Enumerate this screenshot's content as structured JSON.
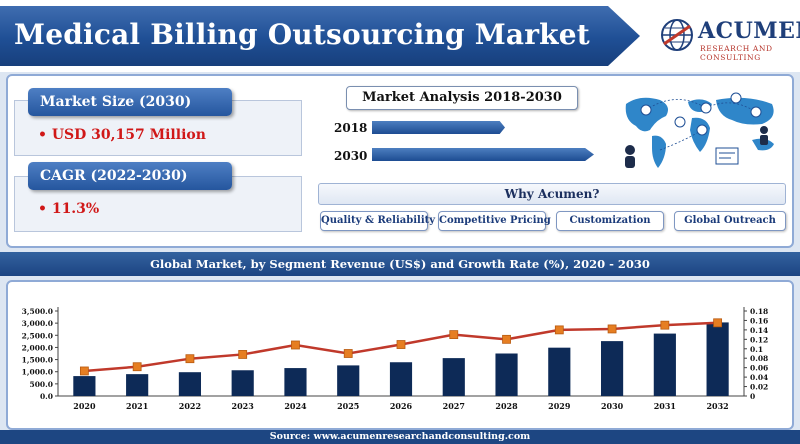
{
  "header": {
    "title": "Medical Billing Outsourcing Market",
    "logo_word": "ACUMEN",
    "logo_sub": "RESEARCH AND CONSULTING"
  },
  "kpis": [
    {
      "label": "Market Size (2030)",
      "value": "• USD 30,157 Million"
    },
    {
      "label": "CAGR (2022-2030)",
      "value": "• 11.3%"
    }
  ],
  "analysis": {
    "title": "Market Analysis 2018-2030",
    "years": [
      {
        "label": "2018",
        "relative": 0.6
      },
      {
        "label": "2030",
        "relative": 1.0
      }
    ]
  },
  "why": {
    "title": "Why Acumen?",
    "items": [
      "Quality & Reliability",
      "Competitive Pricing",
      "Customization",
      "Global Outreach"
    ]
  },
  "chart_title": "Global Market, by Segment Revenue (US$) and Growth Rate (%), 2020 - 2030",
  "source": "Source: www.acumenresearchandconsulting.com",
  "colors": {
    "brand_blue": "#1f4f95",
    "bar_navy": "#0d2a57",
    "line_red": "#c0392b",
    "marker_orange": "#e67e22",
    "value_red": "#d01818"
  },
  "chart_data": {
    "type": "bar+line",
    "categories": [
      "2020",
      "2021",
      "2022",
      "2023",
      "2024",
      "2025",
      "2026",
      "2027",
      "2028",
      "2029",
      "2030",
      "2031",
      "2032"
    ],
    "series": [
      {
        "type": "bar",
        "axis": "left",
        "values": [
          820,
          900,
          980,
          1060,
          1150,
          1260,
          1390,
          1560,
          1750,
          1990,
          2260,
          2570,
          3030
        ]
      },
      {
        "type": "line",
        "axis": "right",
        "values": [
          0.053,
          0.062,
          0.079,
          0.088,
          0.108,
          0.09,
          0.109,
          0.13,
          0.12,
          0.14,
          0.142,
          0.15,
          0.155
        ]
      }
    ],
    "y_left": {
      "min": 0,
      "max": 3500,
      "ticks": [
        "0.0",
        "500.0",
        "1,000.0",
        "1,500.0",
        "2,000.0",
        "2,500.0",
        "3,000.0",
        "3,500.0"
      ]
    },
    "y_right": {
      "min": 0,
      "max": 0.18,
      "ticks": [
        "0",
        "0.02",
        "0.04",
        "0.06",
        "0.08",
        "0.1",
        "0.12",
        "0.14",
        "0.16",
        "0.18"
      ]
    },
    "grid": false,
    "legend": "none"
  }
}
